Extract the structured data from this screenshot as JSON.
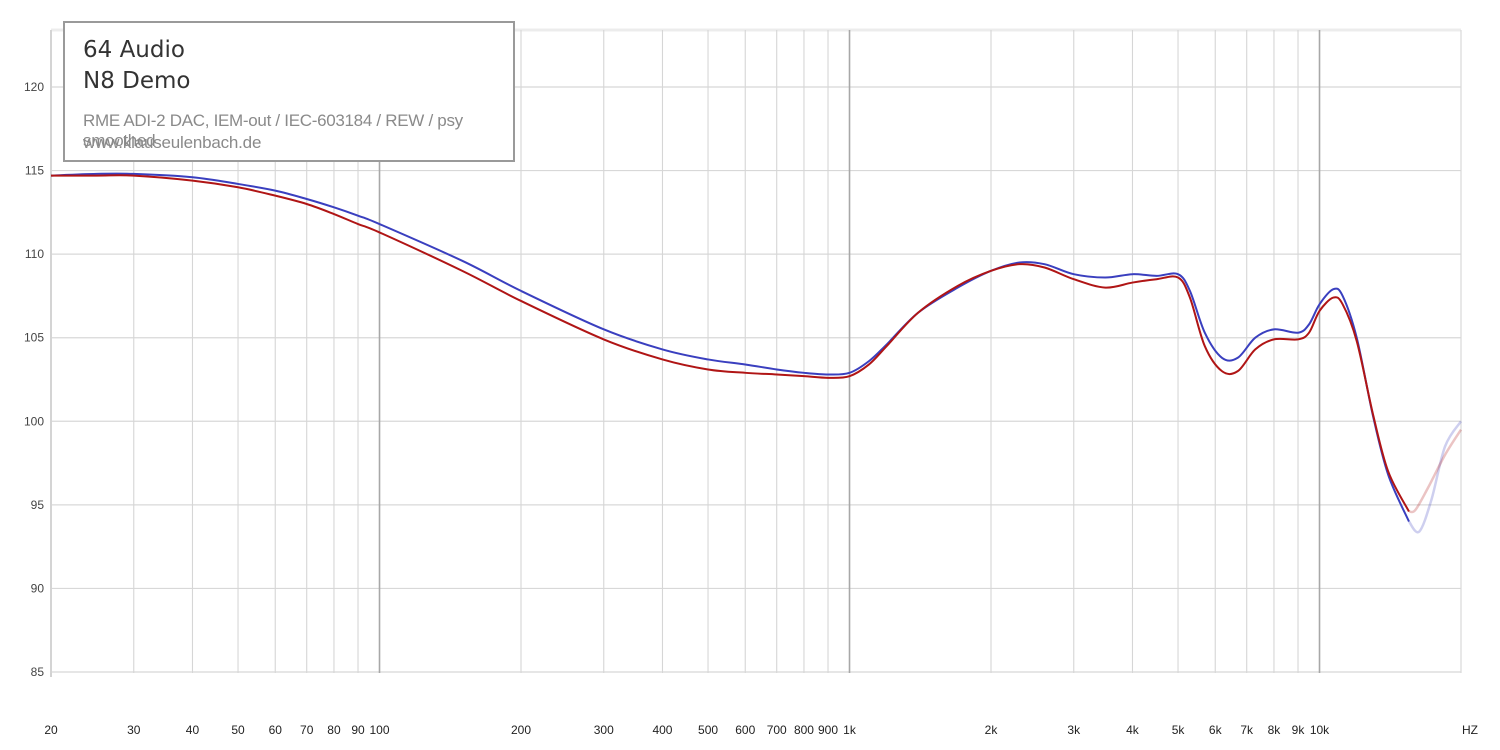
{
  "legend": {
    "brand": "64 Audio",
    "model": "N8 Demo",
    "setup": "RME ADI-2 DAC, IEM-out / IEC-603184 / REW / psy smoothed",
    "site": "www.klauseulenbach.de"
  },
  "chart_data": {
    "type": "line",
    "title": "",
    "xlabel": "HZ",
    "ylabel": "",
    "xscale": "log",
    "xlim": [
      20,
      20000
    ],
    "ylim": [
      85,
      122
    ],
    "grid": true,
    "y_ticks": [
      120,
      115,
      110,
      105,
      100,
      95,
      90,
      85
    ],
    "x_ticks": [
      {
        "v": 20,
        "label": "20"
      },
      {
        "v": 30,
        "label": "30"
      },
      {
        "v": 40,
        "label": "40"
      },
      {
        "v": 50,
        "label": "50"
      },
      {
        "v": 60,
        "label": "60"
      },
      {
        "v": 70,
        "label": "70"
      },
      {
        "v": 80,
        "label": "80"
      },
      {
        "v": 90,
        "label": "90"
      },
      {
        "v": 100,
        "label": "100"
      },
      {
        "v": 200,
        "label": "200"
      },
      {
        "v": 300,
        "label": "300"
      },
      {
        "v": 400,
        "label": "400"
      },
      {
        "v": 500,
        "label": "500"
      },
      {
        "v": 600,
        "label": "600"
      },
      {
        "v": 700,
        "label": "700"
      },
      {
        "v": 800,
        "label": "800"
      },
      {
        "v": 900,
        "label": "900"
      },
      {
        "v": 1000,
        "label": "1k"
      },
      {
        "v": 2000,
        "label": "2k"
      },
      {
        "v": 3000,
        "label": "3k"
      },
      {
        "v": 4000,
        "label": "4k"
      },
      {
        "v": 5000,
        "label": "5k"
      },
      {
        "v": 6000,
        "label": "6k"
      },
      {
        "v": 7000,
        "label": "7k"
      },
      {
        "v": 8000,
        "label": "8k"
      },
      {
        "v": 9000,
        "label": "9k"
      },
      {
        "v": 10000,
        "label": "10k"
      }
    ],
    "series": [
      {
        "color": "#3a3fbf",
        "points": [
          [
            20,
            114.7
          ],
          [
            25,
            114.8
          ],
          [
            30,
            114.8
          ],
          [
            40,
            114.6
          ],
          [
            50,
            114.2
          ],
          [
            60,
            113.8
          ],
          [
            70,
            113.3
          ],
          [
            80,
            112.8
          ],
          [
            90,
            112.3
          ],
          [
            100,
            111.8
          ],
          [
            150,
            109.6
          ],
          [
            200,
            107.8
          ],
          [
            300,
            105.5
          ],
          [
            400,
            104.3
          ],
          [
            500,
            103.7
          ],
          [
            600,
            103.4
          ],
          [
            700,
            103.1
          ],
          [
            800,
            102.9
          ],
          [
            900,
            102.8
          ],
          [
            1000,
            102.9
          ],
          [
            1100,
            103.6
          ],
          [
            1200,
            104.6
          ],
          [
            1400,
            106.5
          ],
          [
            1700,
            108.0
          ],
          [
            2000,
            109.0
          ],
          [
            2300,
            109.5
          ],
          [
            2600,
            109.4
          ],
          [
            3000,
            108.8
          ],
          [
            3500,
            108.6
          ],
          [
            4000,
            108.8
          ],
          [
            4500,
            108.7
          ],
          [
            5000,
            108.8
          ],
          [
            5300,
            107.8
          ],
          [
            5700,
            105.3
          ],
          [
            6200,
            103.8
          ],
          [
            6700,
            103.8
          ],
          [
            7300,
            105.0
          ],
          [
            8000,
            105.5
          ],
          [
            9000,
            105.3
          ],
          [
            9500,
            105.8
          ],
          [
            10000,
            107.0
          ],
          [
            10700,
            107.9
          ],
          [
            11200,
            107.5
          ],
          [
            12000,
            105.0
          ],
          [
            13000,
            100.3
          ],
          [
            14000,
            96.8
          ],
          [
            15500,
            94.0
          ],
          [
            16300,
            93.4
          ],
          [
            17300,
            95.3
          ],
          [
            18500,
            98.5
          ],
          [
            20000,
            100.0
          ]
        ]
      },
      {
        "color": "#b01515",
        "points": [
          [
            20,
            114.7
          ],
          [
            25,
            114.7
          ],
          [
            30,
            114.7
          ],
          [
            40,
            114.4
          ],
          [
            50,
            114.0
          ],
          [
            60,
            113.5
          ],
          [
            70,
            113.0
          ],
          [
            80,
            112.4
          ],
          [
            90,
            111.8
          ],
          [
            100,
            111.3
          ],
          [
            150,
            109.0
          ],
          [
            200,
            107.2
          ],
          [
            300,
            104.9
          ],
          [
            400,
            103.7
          ],
          [
            500,
            103.1
          ],
          [
            600,
            102.9
          ],
          [
            700,
            102.8
          ],
          [
            800,
            102.7
          ],
          [
            900,
            102.6
          ],
          [
            1000,
            102.7
          ],
          [
            1100,
            103.4
          ],
          [
            1200,
            104.5
          ],
          [
            1400,
            106.5
          ],
          [
            1700,
            108.1
          ],
          [
            2000,
            109.0
          ],
          [
            2300,
            109.4
          ],
          [
            2600,
            109.2
          ],
          [
            3000,
            108.5
          ],
          [
            3500,
            108.0
          ],
          [
            4000,
            108.3
          ],
          [
            4500,
            108.5
          ],
          [
            5000,
            108.6
          ],
          [
            5300,
            107.4
          ],
          [
            5700,
            104.5
          ],
          [
            6200,
            103.0
          ],
          [
            6700,
            103.0
          ],
          [
            7300,
            104.3
          ],
          [
            8000,
            104.9
          ],
          [
            9000,
            104.9
          ],
          [
            9500,
            105.3
          ],
          [
            10000,
            106.6
          ],
          [
            10700,
            107.4
          ],
          [
            11200,
            107.0
          ],
          [
            12000,
            104.8
          ],
          [
            13000,
            100.4
          ],
          [
            14000,
            97.0
          ],
          [
            15500,
            94.6
          ],
          [
            16000,
            94.7
          ],
          [
            17000,
            96.0
          ],
          [
            18500,
            98.0
          ],
          [
            20000,
            99.5
          ]
        ]
      }
    ]
  }
}
